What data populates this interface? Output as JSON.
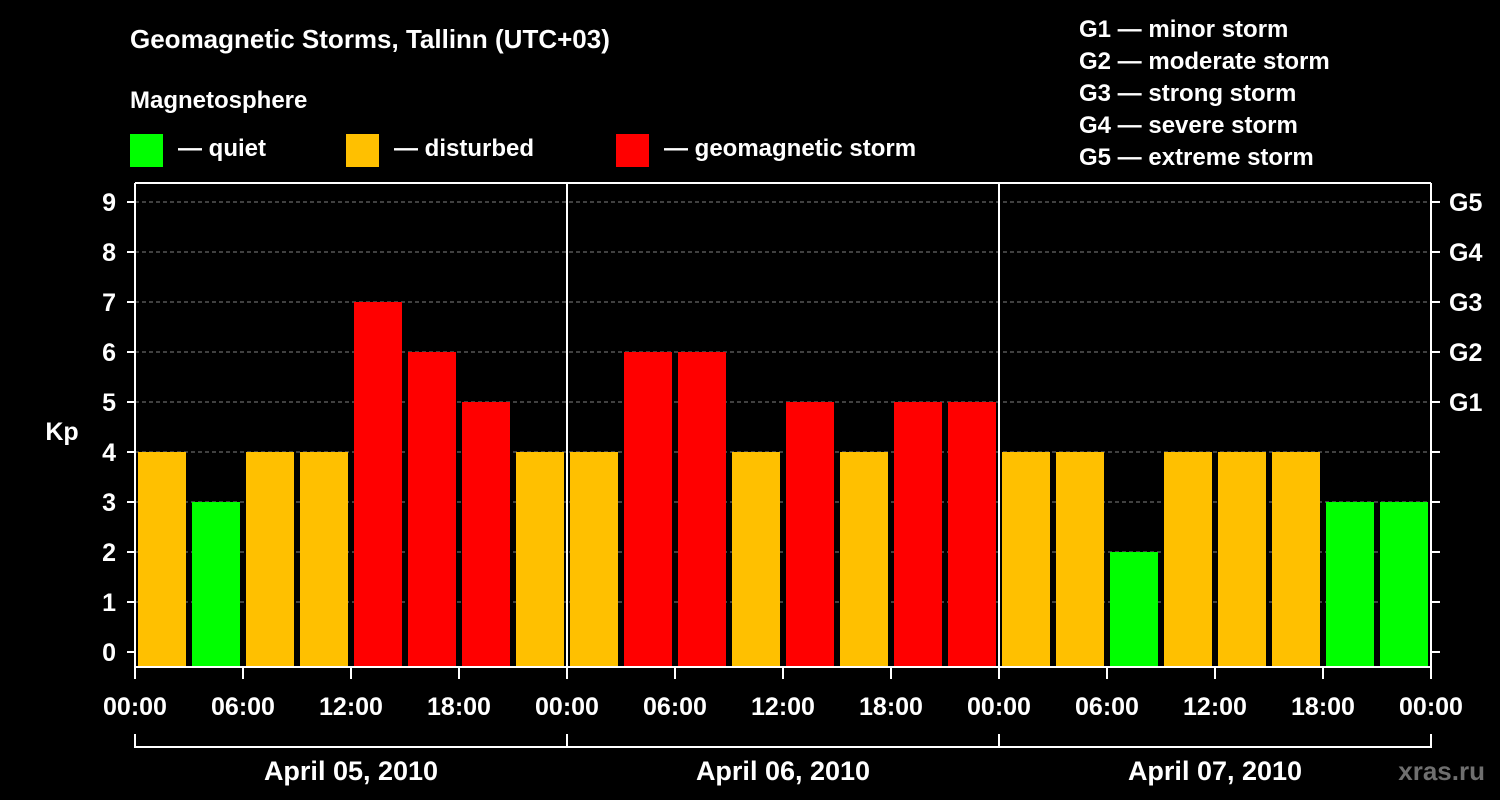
{
  "chart_data": {
    "type": "bar",
    "title": "Geomagnetic Storms, Tallinn (UTC+03)",
    "subtitle": "Magnetosphere",
    "ylabel": "Kp",
    "ylim": [
      0,
      9
    ],
    "y_ticks": [
      "0",
      "1",
      "2",
      "3",
      "4",
      "5",
      "6",
      "7",
      "8",
      "9"
    ],
    "right_ticks": [
      {
        "kp": 5,
        "label": "G1"
      },
      {
        "kp": 6,
        "label": "G2"
      },
      {
        "kp": 7,
        "label": "G3"
      },
      {
        "kp": 8,
        "label": "G4"
      },
      {
        "kp": 9,
        "label": "G5"
      }
    ],
    "x_tick_labels": [
      "00:00",
      "06:00",
      "12:00",
      "18:00",
      "00:00",
      "06:00",
      "12:00",
      "18:00",
      "00:00",
      "06:00",
      "12:00",
      "18:00",
      "00:00"
    ],
    "days": [
      "April 05, 2010",
      "April 06, 2010",
      "April 07, 2010"
    ],
    "interval_hours": 3,
    "values": [
      4,
      3,
      4,
      4,
      7,
      6,
      5,
      4,
      4,
      6,
      6,
      4,
      5,
      4,
      5,
      5,
      4,
      4,
      2,
      4,
      4,
      4,
      3,
      3
    ],
    "thresholds": {
      "quiet_max": 3,
      "disturbed_max": 4
    },
    "colors": {
      "quiet": "#00ff00",
      "disturbed": "#ffc000",
      "storm": "#ff0000",
      "grid": "#7f7f7f",
      "axis": "#ffffff"
    },
    "legend": [
      {
        "label": "— quiet",
        "color": "#00ff00"
      },
      {
        "label": "— disturbed",
        "color": "#ffc000"
      },
      {
        "label": "— geomagnetic storm",
        "color": "#ff0000"
      }
    ],
    "storm_scale": [
      "G1 — minor storm",
      "G2 — moderate storm",
      "G3 — strong storm",
      "G4 — severe storm",
      "G5 — extreme storm"
    ]
  },
  "watermark": "xras.ru"
}
